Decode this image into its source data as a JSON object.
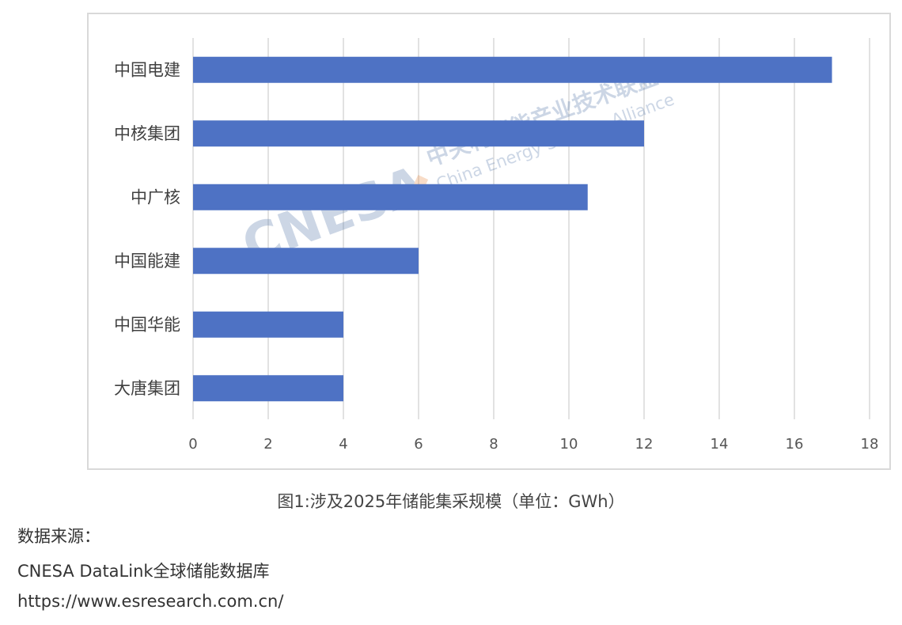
{
  "chart_data": {
    "type": "bar",
    "orientation": "horizontal",
    "categories": [
      "中国电建",
      "中核集团",
      "中广核",
      "中国能建",
      "中国华能",
      "大唐集团"
    ],
    "values": [
      17,
      12,
      10.5,
      6,
      4,
      4
    ],
    "xlim": [
      0,
      18
    ],
    "xticks": [
      "0",
      "2",
      "4",
      "6",
      "8",
      "10",
      "12",
      "14",
      "16",
      "18"
    ],
    "grid": "vertical",
    "bar_color": "#4e72c4",
    "grid_color": "#d9d9d9",
    "watermark": {
      "logo_text": "CNESA",
      "cn_text": "中关村储能产业技术联盟",
      "en_text": "China Energy Storage Alliance",
      "color": "#4a6fa5",
      "accent_color": "#e8863a"
    }
  },
  "caption": "图1:涉及2025年储能集采规模（单位：GWh）",
  "source": {
    "title": "数据来源：",
    "line1": "CNESA  DataLink全球储能数据库",
    "line2": "https://www.esresearch.com.cn/"
  }
}
